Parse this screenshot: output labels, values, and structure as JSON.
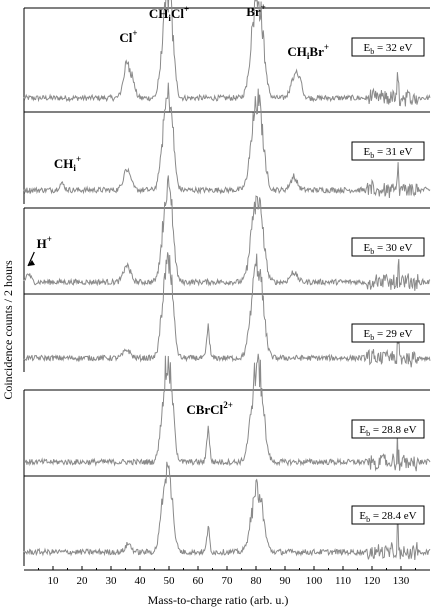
{
  "chart_data": {
    "type": "line",
    "ylabel": "Coincidence counts / 2 hours",
    "xlabel": "Mass-to-charge ratio (arb. u.)",
    "xlim": [
      0,
      140
    ],
    "x_ticks": [
      10,
      20,
      30,
      40,
      50,
      60,
      70,
      80,
      90,
      100,
      110,
      120,
      130
    ],
    "series_color": "#8a8a8a",
    "grid": false,
    "panels": [
      {
        "name": "panel-32",
        "energy": {
          "prefix": "E",
          "sub": "b",
          "value": " = 32 eV"
        },
        "peaks": [
          {
            "x": 35.5,
            "height": 0.42,
            "width": 1.2
          },
          {
            "x": 37.5,
            "height": 0.15,
            "width": 0.9
          },
          {
            "x": 48.5,
            "height": 0.78,
            "width": 1.3
          },
          {
            "x": 50.5,
            "height": 0.92,
            "width": 1.2
          },
          {
            "x": 79.5,
            "height": 0.82,
            "width": 1.6
          },
          {
            "x": 81.5,
            "height": 0.75,
            "width": 1.5
          },
          {
            "x": 93,
            "height": 0.24,
            "width": 1.2
          },
          {
            "x": 95,
            "height": 0.2,
            "width": 1.0
          }
        ],
        "labels": [
          {
            "name": "Cl-label",
            "base": "Cl",
            "sub": "",
            "sup": "+"
          },
          {
            "name": "CHiCl-label",
            "base": "CH",
            "sub": "i",
            "base2": "Cl",
            "sup": "+"
          },
          {
            "name": "Br-label",
            "base": "Br",
            "sub": "",
            "sup": "+"
          },
          {
            "name": "CHiBr-label",
            "base": "CH",
            "sub": "i",
            "base2": "Br",
            "sup": "+"
          }
        ]
      },
      {
        "name": "panel-31",
        "energy": {
          "prefix": "E",
          "sub": "b",
          "value": " = 31 eV"
        },
        "peaks": [
          {
            "x": 13,
            "height": 0.08,
            "width": 0.9
          },
          {
            "x": 35.5,
            "height": 0.28,
            "width": 1.2
          },
          {
            "x": 48.5,
            "height": 0.72,
            "width": 1.3
          },
          {
            "x": 50.5,
            "height": 0.88,
            "width": 1.2
          },
          {
            "x": 79.5,
            "height": 0.7,
            "width": 1.6
          },
          {
            "x": 81.5,
            "height": 0.64,
            "width": 1.5
          },
          {
            "x": 93,
            "height": 0.16,
            "width": 1.2
          }
        ],
        "labels": [
          {
            "name": "CHi-label",
            "base": "CH",
            "sub": "i",
            "sup": "+"
          }
        ]
      },
      {
        "name": "panel-30",
        "energy": {
          "prefix": "E",
          "sub": "b",
          "value": " = 30 eV"
        },
        "peaks": [
          {
            "x": 1.5,
            "height": 0.1,
            "width": 0.8
          },
          {
            "x": 35.5,
            "height": 0.2,
            "width": 1.2
          },
          {
            "x": 48.5,
            "height": 0.7,
            "width": 1.3
          },
          {
            "x": 50.5,
            "height": 0.86,
            "width": 1.2
          },
          {
            "x": 79.5,
            "height": 0.68,
            "width": 1.6
          },
          {
            "x": 81.5,
            "height": 0.6,
            "width": 1.5
          },
          {
            "x": 93,
            "height": 0.12,
            "width": 1.2
          }
        ],
        "labels": [
          {
            "name": "H-label",
            "base": "H",
            "sub": "",
            "sup": "+"
          }
        ]
      },
      {
        "name": "panel-29",
        "energy": {
          "prefix": "E",
          "sub": "b",
          "value": " = 29 eV"
        },
        "peaks": [
          {
            "x": 35.5,
            "height": 0.1,
            "width": 1.2
          },
          {
            "x": 48.5,
            "height": 0.74,
            "width": 1.3
          },
          {
            "x": 50.5,
            "height": 0.84,
            "width": 1.2
          },
          {
            "x": 63.5,
            "height": 0.36,
            "width": 0.5
          },
          {
            "x": 79.5,
            "height": 0.76,
            "width": 1.6
          },
          {
            "x": 81.5,
            "height": 0.68,
            "width": 1.5
          }
        ],
        "labels": []
      },
      {
        "name": "panel-28-8",
        "energy": {
          "prefix": "E",
          "sub": "b",
          "value": " = 28.8 eV"
        },
        "peaks": [
          {
            "x": 48.5,
            "height": 0.82,
            "width": 1.3
          },
          {
            "x": 50.5,
            "height": 0.8,
            "width": 1.2
          },
          {
            "x": 63.5,
            "height": 0.42,
            "width": 0.5
          },
          {
            "x": 79.5,
            "height": 0.74,
            "width": 1.6
          },
          {
            "x": 81.5,
            "height": 0.7,
            "width": 1.5
          }
        ],
        "labels": [
          {
            "name": "CBrCl-label",
            "base": "CBrCl",
            "sub": "",
            "sup": "2+"
          }
        ]
      },
      {
        "name": "panel-28-4",
        "energy": {
          "prefix": "E",
          "sub": "b",
          "value": " = 28.4 eV"
        },
        "peaks": [
          {
            "x": 36,
            "height": 0.1,
            "width": 1.0
          },
          {
            "x": 48.5,
            "height": 0.76,
            "width": 1.3
          },
          {
            "x": 50.5,
            "height": 0.6,
            "width": 1.2
          },
          {
            "x": 63.5,
            "height": 0.28,
            "width": 0.5
          },
          {
            "x": 79.5,
            "height": 0.5,
            "width": 1.6
          },
          {
            "x": 81.5,
            "height": 0.44,
            "width": 1.5
          }
        ],
        "labels": []
      }
    ]
  }
}
